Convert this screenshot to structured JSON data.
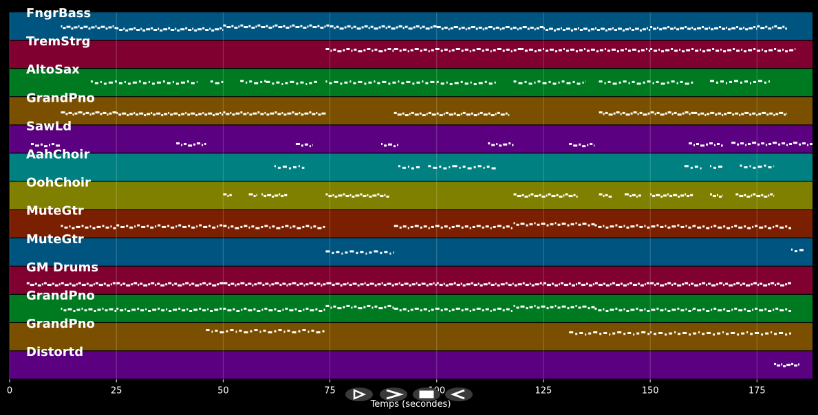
{
  "axis": {
    "label": "Temps (secondes)",
    "ticks": [
      "0",
      "25",
      "50",
      "75",
      "100",
      "125",
      "150",
      "175"
    ],
    "tick_values": [
      0,
      25,
      50,
      75,
      100,
      125,
      150,
      175
    ],
    "xlim": [
      0,
      188
    ]
  },
  "tracks": [
    {
      "label": "FngrBass",
      "color": "#005580",
      "segments": [
        [
          12,
          25,
          0.55
        ],
        [
          25,
          50,
          0.62
        ],
        [
          50,
          75,
          0.52
        ],
        [
          75,
          100,
          0.55
        ],
        [
          100,
          125,
          0.58
        ],
        [
          125,
          150,
          0.62
        ],
        [
          150,
          175,
          0.58
        ],
        [
          175,
          182,
          0.55
        ]
      ]
    },
    {
      "label": "TremStrg",
      "color": "#800030",
      "segments": [
        [
          74,
          90,
          0.35
        ],
        [
          90,
          120,
          0.35
        ],
        [
          120,
          150,
          0.35
        ],
        [
          150,
          184,
          0.35
        ]
      ]
    },
    {
      "label": "AltoSax",
      "color": "#007a20",
      "segments": [
        [
          19,
          44,
          0.5
        ],
        [
          47,
          50,
          0.5
        ],
        [
          54,
          60,
          0.48
        ],
        [
          60,
          72,
          0.52
        ],
        [
          74,
          100,
          0.5
        ],
        [
          100,
          114,
          0.52
        ],
        [
          118,
          135,
          0.5
        ],
        [
          138,
          160,
          0.5
        ],
        [
          164,
          178,
          0.48
        ]
      ]
    },
    {
      "label": "GrandPno",
      "color": "#7a5000",
      "segments": [
        [
          12,
          25,
          0.6
        ],
        [
          25,
          50,
          0.62
        ],
        [
          50,
          74,
          0.6
        ],
        [
          90,
          117,
          0.62
        ],
        [
          138,
          160,
          0.6
        ],
        [
          160,
          182,
          0.62
        ]
      ]
    },
    {
      "label": "SawLd",
      "color": "#5a0080",
      "segments": [
        [
          5,
          12,
          0.72
        ],
        [
          39,
          46,
          0.7
        ],
        [
          67,
          71,
          0.72
        ],
        [
          87,
          91,
          0.72
        ],
        [
          112,
          118,
          0.7
        ],
        [
          131,
          137,
          0.72
        ],
        [
          159,
          167,
          0.7
        ],
        [
          169,
          188,
          0.68
        ]
      ]
    },
    {
      "label": "AahChoir",
      "color": "#008080",
      "segments": [
        [
          62,
          69,
          0.5
        ],
        [
          91,
          96,
          0.5
        ],
        [
          98,
          104,
          0.5
        ],
        [
          104,
          114,
          0.5
        ],
        [
          158,
          162,
          0.5
        ],
        [
          164,
          167,
          0.5
        ],
        [
          171,
          179,
          0.48
        ]
      ]
    },
    {
      "label": "OohChoir",
      "color": "#808000",
      "segments": [
        [
          50,
          52,
          0.5
        ],
        [
          56,
          58,
          0.5
        ],
        [
          59,
          65,
          0.5
        ],
        [
          74,
          89,
          0.5
        ],
        [
          118,
          133,
          0.5
        ],
        [
          138,
          141,
          0.5
        ],
        [
          144,
          148,
          0.5
        ],
        [
          150,
          160,
          0.5
        ],
        [
          164,
          167,
          0.5
        ],
        [
          170,
          179,
          0.5
        ]
      ]
    },
    {
      "label": "MuteGtr",
      "color": "#7a2000",
      "segments": [
        [
          12,
          25,
          0.62
        ],
        [
          25,
          50,
          0.6
        ],
        [
          50,
          74,
          0.62
        ],
        [
          90,
          118,
          0.62
        ],
        [
          118,
          137,
          0.52
        ],
        [
          137,
          160,
          0.6
        ],
        [
          160,
          183,
          0.62
        ]
      ]
    },
    {
      "label": "MuteGtr",
      "color": "#005580",
      "segments": [
        [
          74,
          90,
          0.52
        ],
        [
          183,
          186,
          0.45
        ]
      ]
    },
    {
      "label": "GM Drums",
      "color": "#800030",
      "segments": [
        [
          4,
          25,
          0.65
        ],
        [
          25,
          50,
          0.65
        ],
        [
          50,
          75,
          0.65
        ],
        [
          75,
          100,
          0.65
        ],
        [
          100,
          125,
          0.65
        ],
        [
          125,
          150,
          0.65
        ],
        [
          150,
          183,
          0.65
        ]
      ]
    },
    {
      "label": "GrandPno",
      "color": "#007a20",
      "segments": [
        [
          12,
          25,
          0.55
        ],
        [
          25,
          50,
          0.55
        ],
        [
          50,
          74,
          0.55
        ],
        [
          74,
          90,
          0.45
        ],
        [
          90,
          118,
          0.55
        ],
        [
          118,
          137,
          0.45
        ],
        [
          137,
          160,
          0.55
        ],
        [
          160,
          183,
          0.55
        ]
      ]
    },
    {
      "label": "GrandPno",
      "color": "#7a5000",
      "segments": [
        [
          46,
          74,
          0.3
        ],
        [
          131,
          150,
          0.38
        ],
        [
          150,
          183,
          0.38
        ]
      ]
    },
    {
      "label": "Distortd",
      "color": "#5a0080",
      "segments": [
        [
          179,
          185,
          0.5
        ]
      ]
    }
  ],
  "controls": [
    {
      "name": "play-button",
      "icon": "play-outline-icon"
    },
    {
      "name": "forward-button",
      "icon": "chevron-right-icon"
    },
    {
      "name": "stop-button",
      "icon": "stop-icon"
    },
    {
      "name": "rewind-button",
      "icon": "rewind-icon"
    }
  ]
}
